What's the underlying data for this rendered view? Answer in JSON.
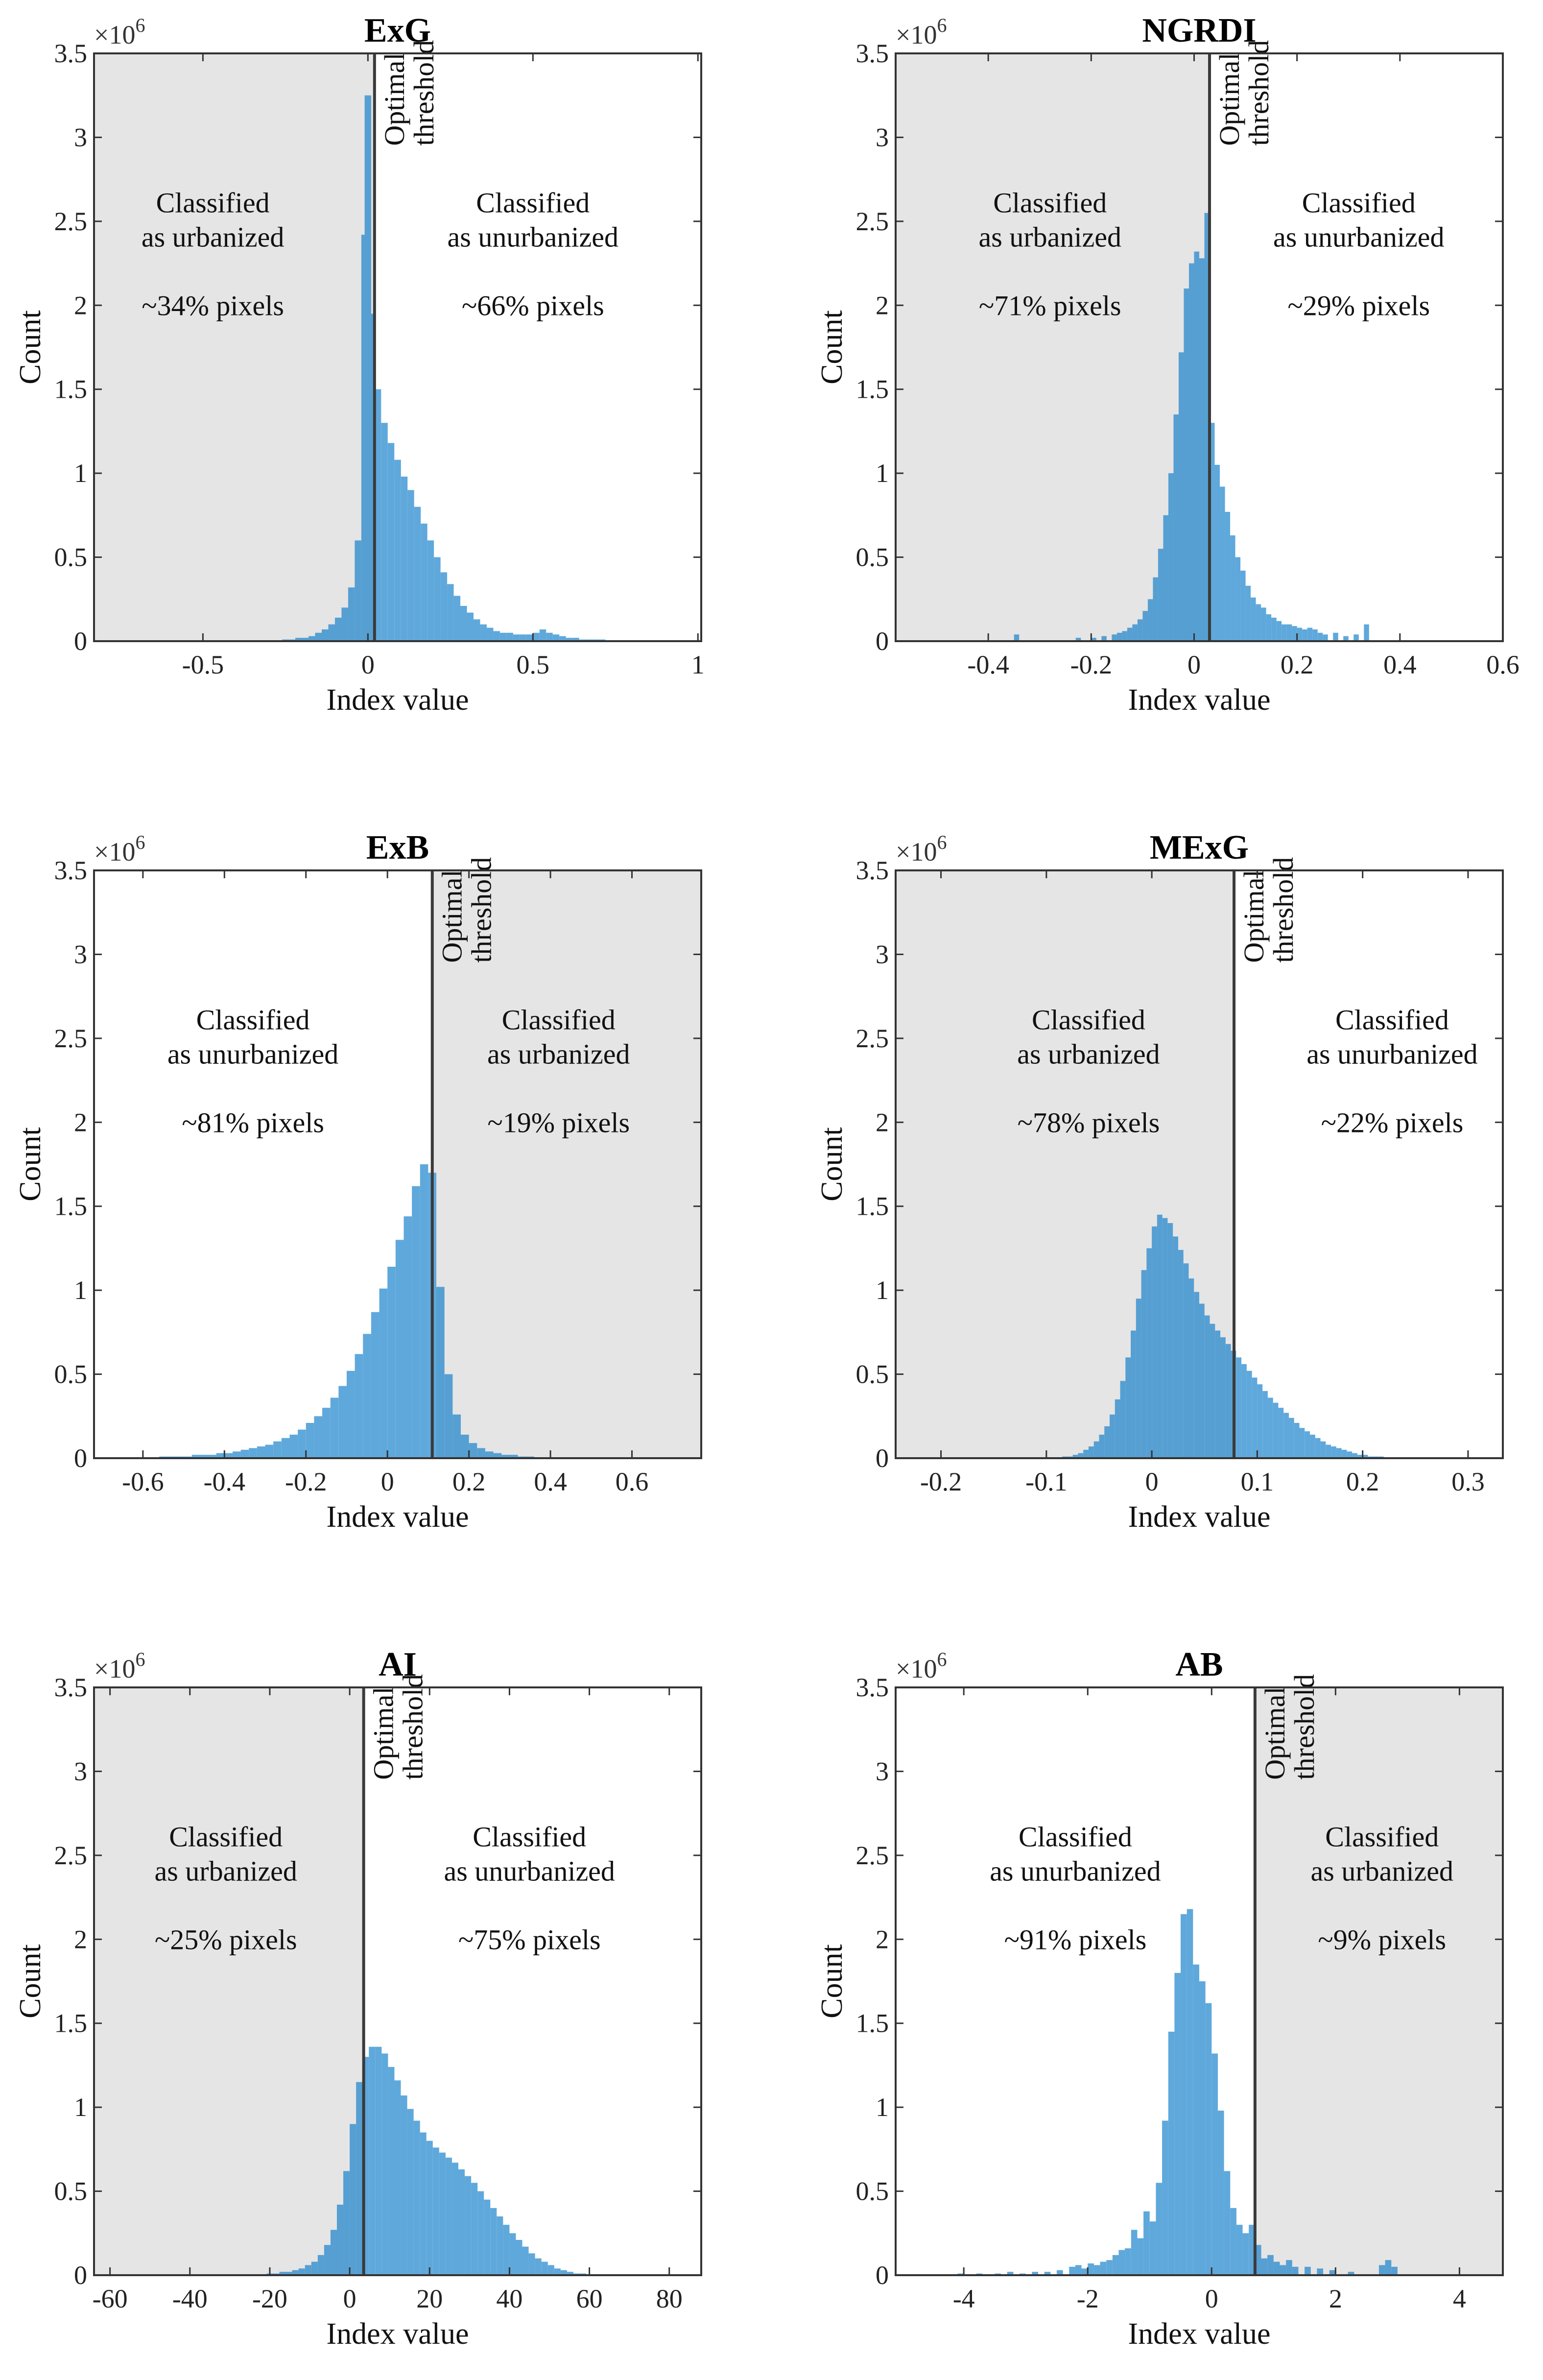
{
  "chart_data": [
    {
      "type": "bar",
      "title": "ExG",
      "xlabel": "Index value",
      "ylabel": "Count",
      "y_multiplier": "×10",
      "y_exponent": "6",
      "xlim": [
        -0.83,
        1.01
      ],
      "ylim": [
        0,
        3.5
      ],
      "xticks": [
        -0.5,
        0,
        0.5,
        1
      ],
      "xtick_labels": [
        "-0.5",
        "0",
        "0.5",
        "1"
      ],
      "yticks": [
        0,
        0.5,
        1,
        1.5,
        2,
        2.5,
        3,
        3.5
      ],
      "ytick_labels": [
        "0",
        "0.5",
        "1",
        "1.5",
        "2",
        "2.5",
        "3",
        "3.5"
      ],
      "threshold": 0.02,
      "threshold_label": [
        "Optimal",
        "threshold"
      ],
      "shaded_side": "left",
      "bin_width": 0.02,
      "bin_centers": [
        -0.25,
        -0.23,
        -0.21,
        -0.19,
        -0.17,
        -0.15,
        -0.13,
        -0.11,
        -0.09,
        -0.07,
        -0.05,
        -0.03,
        -0.01,
        0.0,
        0.01,
        0.03,
        0.05,
        0.07,
        0.09,
        0.11,
        0.13,
        0.15,
        0.17,
        0.19,
        0.21,
        0.23,
        0.25,
        0.27,
        0.29,
        0.31,
        0.33,
        0.35,
        0.37,
        0.39,
        0.41,
        0.43,
        0.45,
        0.47,
        0.49,
        0.51,
        0.53,
        0.55,
        0.57,
        0.59,
        0.61,
        0.63,
        0.65,
        0.67,
        0.69,
        0.71
      ],
      "counts": [
        0.01,
        0.01,
        0.02,
        0.02,
        0.03,
        0.05,
        0.07,
        0.1,
        0.14,
        0.2,
        0.32,
        0.6,
        2.42,
        3.25,
        1.95,
        1.5,
        1.3,
        1.18,
        1.08,
        0.98,
        0.9,
        0.8,
        0.7,
        0.6,
        0.5,
        0.41,
        0.34,
        0.27,
        0.21,
        0.17,
        0.13,
        0.1,
        0.08,
        0.06,
        0.05,
        0.05,
        0.04,
        0.04,
        0.04,
        0.05,
        0.07,
        0.05,
        0.04,
        0.03,
        0.02,
        0.02,
        0.01,
        0.01,
        0.01,
        0.01
      ],
      "annotations": [
        {
          "lines": [
            "Classified",
            "as urbanized",
            "",
            "~34% pixels"
          ],
          "x": -0.47,
          "y": 2.35
        },
        {
          "lines": [
            "Classified",
            "as unurbanized",
            "",
            "~66% pixels"
          ],
          "x": 0.5,
          "y": 2.35
        }
      ]
    },
    {
      "type": "bar",
      "title": "NGRDI",
      "xlabel": "Index value",
      "ylabel": "Count",
      "y_multiplier": "×10",
      "y_exponent": "6",
      "xlim": [
        -0.58,
        0.6
      ],
      "ylim": [
        0,
        3.5
      ],
      "xticks": [
        -0.4,
        -0.2,
        0,
        0.2,
        0.4,
        0.6
      ],
      "xtick_labels": [
        "-0.4",
        "-0.2",
        "0",
        "0.2",
        "0.4",
        "0.6"
      ],
      "yticks": [
        0,
        0.5,
        1,
        1.5,
        2,
        2.5,
        3,
        3.5
      ],
      "ytick_labels": [
        "0",
        "0.5",
        "1",
        "1.5",
        "2",
        "2.5",
        "3",
        "3.5"
      ],
      "threshold": 0.03,
      "threshold_label": [
        "Optimal",
        "threshold"
      ],
      "shaded_side": "left",
      "bin_width": 0.01,
      "bin_centers": [
        -0.345,
        -0.225,
        -0.195,
        -0.175,
        -0.155,
        -0.145,
        -0.135,
        -0.125,
        -0.115,
        -0.105,
        -0.095,
        -0.085,
        -0.075,
        -0.065,
        -0.055,
        -0.045,
        -0.035,
        -0.025,
        -0.015,
        -0.005,
        0.005,
        0.015,
        0.025,
        0.035,
        0.045,
        0.055,
        0.065,
        0.075,
        0.085,
        0.095,
        0.105,
        0.115,
        0.125,
        0.135,
        0.145,
        0.155,
        0.165,
        0.175,
        0.185,
        0.195,
        0.205,
        0.215,
        0.225,
        0.235,
        0.245,
        0.255,
        0.275,
        0.295,
        0.315,
        0.335
      ],
      "counts": [
        0.04,
        0.02,
        0.02,
        0.03,
        0.04,
        0.05,
        0.06,
        0.08,
        0.1,
        0.13,
        0.18,
        0.25,
        0.38,
        0.55,
        0.75,
        1.0,
        1.35,
        1.72,
        2.1,
        2.25,
        2.32,
        2.28,
        2.55,
        1.3,
        1.05,
        0.92,
        0.77,
        0.63,
        0.5,
        0.42,
        0.33,
        0.26,
        0.22,
        0.2,
        0.16,
        0.14,
        0.12,
        0.1,
        0.1,
        0.09,
        0.08,
        0.07,
        0.08,
        0.07,
        0.05,
        0.04,
        0.05,
        0.03,
        0.04,
        0.1
      ],
      "annotations": [
        {
          "lines": [
            "Classified",
            "as urbanized",
            "",
            "~71% pixels"
          ],
          "x": -0.28,
          "y": 2.35
        },
        {
          "lines": [
            "Classified",
            "as unurbanized",
            "",
            "~29% pixels"
          ],
          "x": 0.32,
          "y": 2.35
        }
      ]
    },
    {
      "type": "bar",
      "title": "ExB",
      "xlabel": "Index value",
      "ylabel": "Count",
      "y_multiplier": "×10",
      "y_exponent": "6",
      "xlim": [
        -0.72,
        0.77
      ],
      "ylim": [
        0,
        3.5
      ],
      "xticks": [
        -0.6,
        -0.4,
        -0.2,
        0,
        0.2,
        0.4,
        0.6
      ],
      "xtick_labels": [
        "-0.6",
        "-0.4",
        "-0.2",
        "0",
        "0.2",
        "0.4",
        "0.6"
      ],
      "yticks": [
        0,
        0.5,
        1,
        1.5,
        2,
        2.5,
        3,
        3.5
      ],
      "ytick_labels": [
        "0",
        "0.5",
        "1",
        "1.5",
        "2",
        "2.5",
        "3",
        "3.5"
      ],
      "threshold": 0.11,
      "threshold_label": [
        "Optimal",
        "threshold"
      ],
      "shaded_side": "right",
      "bin_width": 0.02,
      "bin_centers": [
        -0.59,
        -0.57,
        -0.55,
        -0.53,
        -0.51,
        -0.49,
        -0.47,
        -0.45,
        -0.43,
        -0.41,
        -0.39,
        -0.37,
        -0.35,
        -0.33,
        -0.31,
        -0.29,
        -0.27,
        -0.25,
        -0.23,
        -0.21,
        -0.19,
        -0.17,
        -0.15,
        -0.13,
        -0.11,
        -0.09,
        -0.07,
        -0.05,
        -0.03,
        -0.01,
        0.01,
        0.03,
        0.05,
        0.07,
        0.09,
        0.11,
        0.13,
        0.15,
        0.17,
        0.19,
        0.21,
        0.23,
        0.25,
        0.27,
        0.29,
        0.31,
        0.33,
        0.35
      ],
      "counts": [
        0.0,
        0.0,
        0.01,
        0.01,
        0.01,
        0.01,
        0.02,
        0.02,
        0.02,
        0.03,
        0.03,
        0.04,
        0.05,
        0.06,
        0.07,
        0.08,
        0.1,
        0.12,
        0.14,
        0.17,
        0.21,
        0.25,
        0.3,
        0.36,
        0.43,
        0.52,
        0.62,
        0.74,
        0.87,
        1.01,
        1.14,
        1.3,
        1.44,
        1.62,
        1.75,
        1.7,
        1.02,
        0.5,
        0.26,
        0.14,
        0.09,
        0.06,
        0.04,
        0.03,
        0.02,
        0.02,
        0.01,
        0.01
      ],
      "annotations": [
        {
          "lines": [
            "Classified",
            "as unurbanized",
            "",
            "~81% pixels"
          ],
          "x": -0.33,
          "y": 2.35
        },
        {
          "lines": [
            "Classified",
            "as urbanized",
            "",
            "~19% pixels"
          ],
          "x": 0.42,
          "y": 2.35
        }
      ]
    },
    {
      "type": "bar",
      "title": "MExG",
      "xlabel": "Index value",
      "ylabel": "Count",
      "y_multiplier": "×10",
      "y_exponent": "6",
      "xlim": [
        -0.243,
        0.333
      ],
      "ylim": [
        0,
        3.5
      ],
      "xticks": [
        -0.2,
        -0.1,
        0,
        0.1,
        0.2,
        0.3
      ],
      "xtick_labels": [
        "-0.2",
        "-0.1",
        "0",
        "0.1",
        "0.2",
        "0.3"
      ],
      "yticks": [
        0,
        0.5,
        1,
        1.5,
        2,
        2.5,
        3,
        3.5
      ],
      "ytick_labels": [
        "0",
        "0.5",
        "1",
        "1.5",
        "2",
        "2.5",
        "3",
        "3.5"
      ],
      "threshold": 0.078,
      "threshold_label": [
        "Optimal",
        "threshold"
      ],
      "shaded_side": "left",
      "bin_width": 0.005,
      "bin_centers": [
        -0.0875,
        -0.0825,
        -0.0775,
        -0.0725,
        -0.0675,
        -0.0625,
        -0.0575,
        -0.0525,
        -0.0475,
        -0.0425,
        -0.0375,
        -0.0325,
        -0.0275,
        -0.0225,
        -0.0175,
        -0.0125,
        -0.0075,
        -0.0025,
        0.0025,
        0.0075,
        0.0125,
        0.0175,
        0.0225,
        0.0275,
        0.0325,
        0.0375,
        0.0425,
        0.0475,
        0.0525,
        0.0575,
        0.0625,
        0.0675,
        0.0725,
        0.0775,
        0.0825,
        0.0875,
        0.0925,
        0.0975,
        0.1025,
        0.1075,
        0.1125,
        0.1175,
        0.1225,
        0.1275,
        0.1325,
        0.1375,
        0.1425,
        0.1475,
        0.1525,
        0.1575,
        0.1625,
        0.1675,
        0.1725,
        0.1775,
        0.1825,
        0.1875,
        0.1925,
        0.1975,
        0.2025,
        0.2075,
        0.2125,
        0.2175
      ],
      "counts": [
        0.0,
        0.01,
        0.01,
        0.02,
        0.03,
        0.05,
        0.07,
        0.1,
        0.14,
        0.19,
        0.26,
        0.35,
        0.46,
        0.6,
        0.76,
        0.95,
        1.12,
        1.25,
        1.38,
        1.45,
        1.43,
        1.4,
        1.32,
        1.24,
        1.16,
        1.07,
        0.99,
        0.92,
        0.85,
        0.8,
        0.76,
        0.72,
        0.68,
        0.64,
        0.6,
        0.56,
        0.52,
        0.48,
        0.44,
        0.4,
        0.36,
        0.33,
        0.3,
        0.27,
        0.24,
        0.21,
        0.18,
        0.16,
        0.14,
        0.12,
        0.1,
        0.08,
        0.07,
        0.06,
        0.05,
        0.04,
        0.03,
        0.02,
        0.02,
        0.01,
        0.01,
        0.01
      ],
      "annotations": [
        {
          "lines": [
            "Classified",
            "as urbanized",
            "",
            "~78% pixels"
          ],
          "x": -0.06,
          "y": 2.35
        },
        {
          "lines": [
            "Classified",
            "as unurbanized",
            "",
            "~22% pixels"
          ],
          "x": 0.228,
          "y": 2.35
        }
      ]
    },
    {
      "type": "bar",
      "title": "AI",
      "xlabel": "Index value",
      "ylabel": "Count",
      "y_multiplier": "×10",
      "y_exponent": "6",
      "xlim": [
        -64,
        88
      ],
      "ylim": [
        0,
        3.5
      ],
      "xticks": [
        -60,
        -40,
        -20,
        0,
        20,
        40,
        60,
        80
      ],
      "xtick_labels": [
        "-60",
        "-40",
        "-20",
        "0",
        "20",
        "40",
        "60",
        "80"
      ],
      "yticks": [
        0,
        0.5,
        1,
        1.5,
        2,
        2.5,
        3,
        3.5
      ],
      "ytick_labels": [
        "0",
        "0.5",
        "1",
        "1.5",
        "2",
        "2.5",
        "3",
        "3.5"
      ],
      "threshold": 3.5,
      "threshold_label": [
        "Optimal",
        "threshold"
      ],
      "shaded_side": "left",
      "bin_width": 1.6,
      "bin_centers": [
        -20.0,
        -18.4,
        -16.8,
        -15.2,
        -13.6,
        -12.0,
        -10.4,
        -8.8,
        -7.2,
        -5.6,
        -4.0,
        -2.4,
        -0.8,
        0.8,
        2.4,
        4.0,
        5.6,
        7.2,
        8.8,
        10.4,
        12.0,
        13.6,
        15.2,
        16.8,
        18.4,
        20.0,
        21.6,
        23.2,
        24.8,
        26.4,
        28.0,
        29.6,
        31.2,
        32.8,
        34.4,
        36.0,
        37.6,
        39.2,
        40.8,
        42.4,
        44.0,
        45.6,
        47.2,
        48.8,
        50.4,
        52.0,
        53.6,
        55.2,
        56.8,
        58.4
      ],
      "counts": [
        0.01,
        0.01,
        0.02,
        0.02,
        0.03,
        0.04,
        0.06,
        0.08,
        0.12,
        0.18,
        0.27,
        0.42,
        0.62,
        0.9,
        1.15,
        1.3,
        1.36,
        1.36,
        1.32,
        1.24,
        1.16,
        1.07,
        0.99,
        0.92,
        0.85,
        0.8,
        0.76,
        0.73,
        0.7,
        0.67,
        0.63,
        0.59,
        0.55,
        0.5,
        0.45,
        0.4,
        0.35,
        0.3,
        0.25,
        0.21,
        0.17,
        0.13,
        0.1,
        0.08,
        0.06,
        0.04,
        0.03,
        0.02,
        0.01,
        0.01
      ],
      "annotations": [
        {
          "lines": [
            "Classified",
            "as urbanized",
            "",
            "~25% pixels"
          ],
          "x": -31,
          "y": 2.35
        },
        {
          "lines": [
            "Classified",
            "as unurbanized",
            "",
            "~75% pixels"
          ],
          "x": 45,
          "y": 2.35
        }
      ]
    },
    {
      "type": "bar",
      "title": "AB",
      "xlabel": "Index value",
      "ylabel": "Count",
      "y_multiplier": "×10",
      "y_exponent": "6",
      "xlim": [
        -5.1,
        4.7
      ],
      "ylim": [
        0,
        3.5
      ],
      "xticks": [
        -4,
        -2,
        0,
        2,
        4
      ],
      "xtick_labels": [
        "-4",
        "-2",
        "0",
        "2",
        "4"
      ],
      "yticks": [
        0,
        0.5,
        1,
        1.5,
        2,
        2.5,
        3,
        3.5
      ],
      "ytick_labels": [
        "0",
        "0.5",
        "1",
        "1.5",
        "2",
        "2.5",
        "3",
        "3.5"
      ],
      "threshold": 0.7,
      "threshold_label": [
        "Optimal",
        "threshold"
      ],
      "shaded_side": "right",
      "bin_width": 0.1,
      "bin_centers": [
        -4.05,
        -3.75,
        -3.45,
        -3.25,
        -3.05,
        -2.85,
        -2.65,
        -2.45,
        -2.25,
        -2.15,
        -2.05,
        -1.95,
        -1.85,
        -1.75,
        -1.65,
        -1.55,
        -1.45,
        -1.35,
        -1.25,
        -1.15,
        -1.05,
        -0.95,
        -0.85,
        -0.75,
        -0.65,
        -0.55,
        -0.45,
        -0.35,
        -0.25,
        -0.15,
        -0.05,
        0.05,
        0.15,
        0.25,
        0.35,
        0.45,
        0.55,
        0.65,
        0.75,
        0.85,
        0.95,
        1.05,
        1.15,
        1.25,
        1.35,
        1.55,
        1.75,
        1.95,
        2.25,
        2.75,
        2.85,
        2.95
      ],
      "counts": [
        0.01,
        0.01,
        0.01,
        0.02,
        0.01,
        0.02,
        0.02,
        0.03,
        0.05,
        0.06,
        0.04,
        0.07,
        0.06,
        0.08,
        0.09,
        0.12,
        0.15,
        0.16,
        0.27,
        0.22,
        0.38,
        0.32,
        0.55,
        0.92,
        1.45,
        1.8,
        2.15,
        2.18,
        1.85,
        1.75,
        1.62,
        1.32,
        0.98,
        0.62,
        0.4,
        0.3,
        0.25,
        0.3,
        0.18,
        0.1,
        0.12,
        0.08,
        0.06,
        0.09,
        0.05,
        0.05,
        0.04,
        0.03,
        0.02,
        0.06,
        0.09,
        0.05
      ],
      "annotations": [
        {
          "lines": [
            "Classified",
            "as unurbanized",
            "",
            "~91% pixels"
          ],
          "x": -2.2,
          "y": 2.35
        },
        {
          "lines": [
            "Classified",
            "as urbanized",
            "",
            "~9% pixels"
          ],
          "x": 2.75,
          "y": 2.35
        }
      ]
    }
  ]
}
